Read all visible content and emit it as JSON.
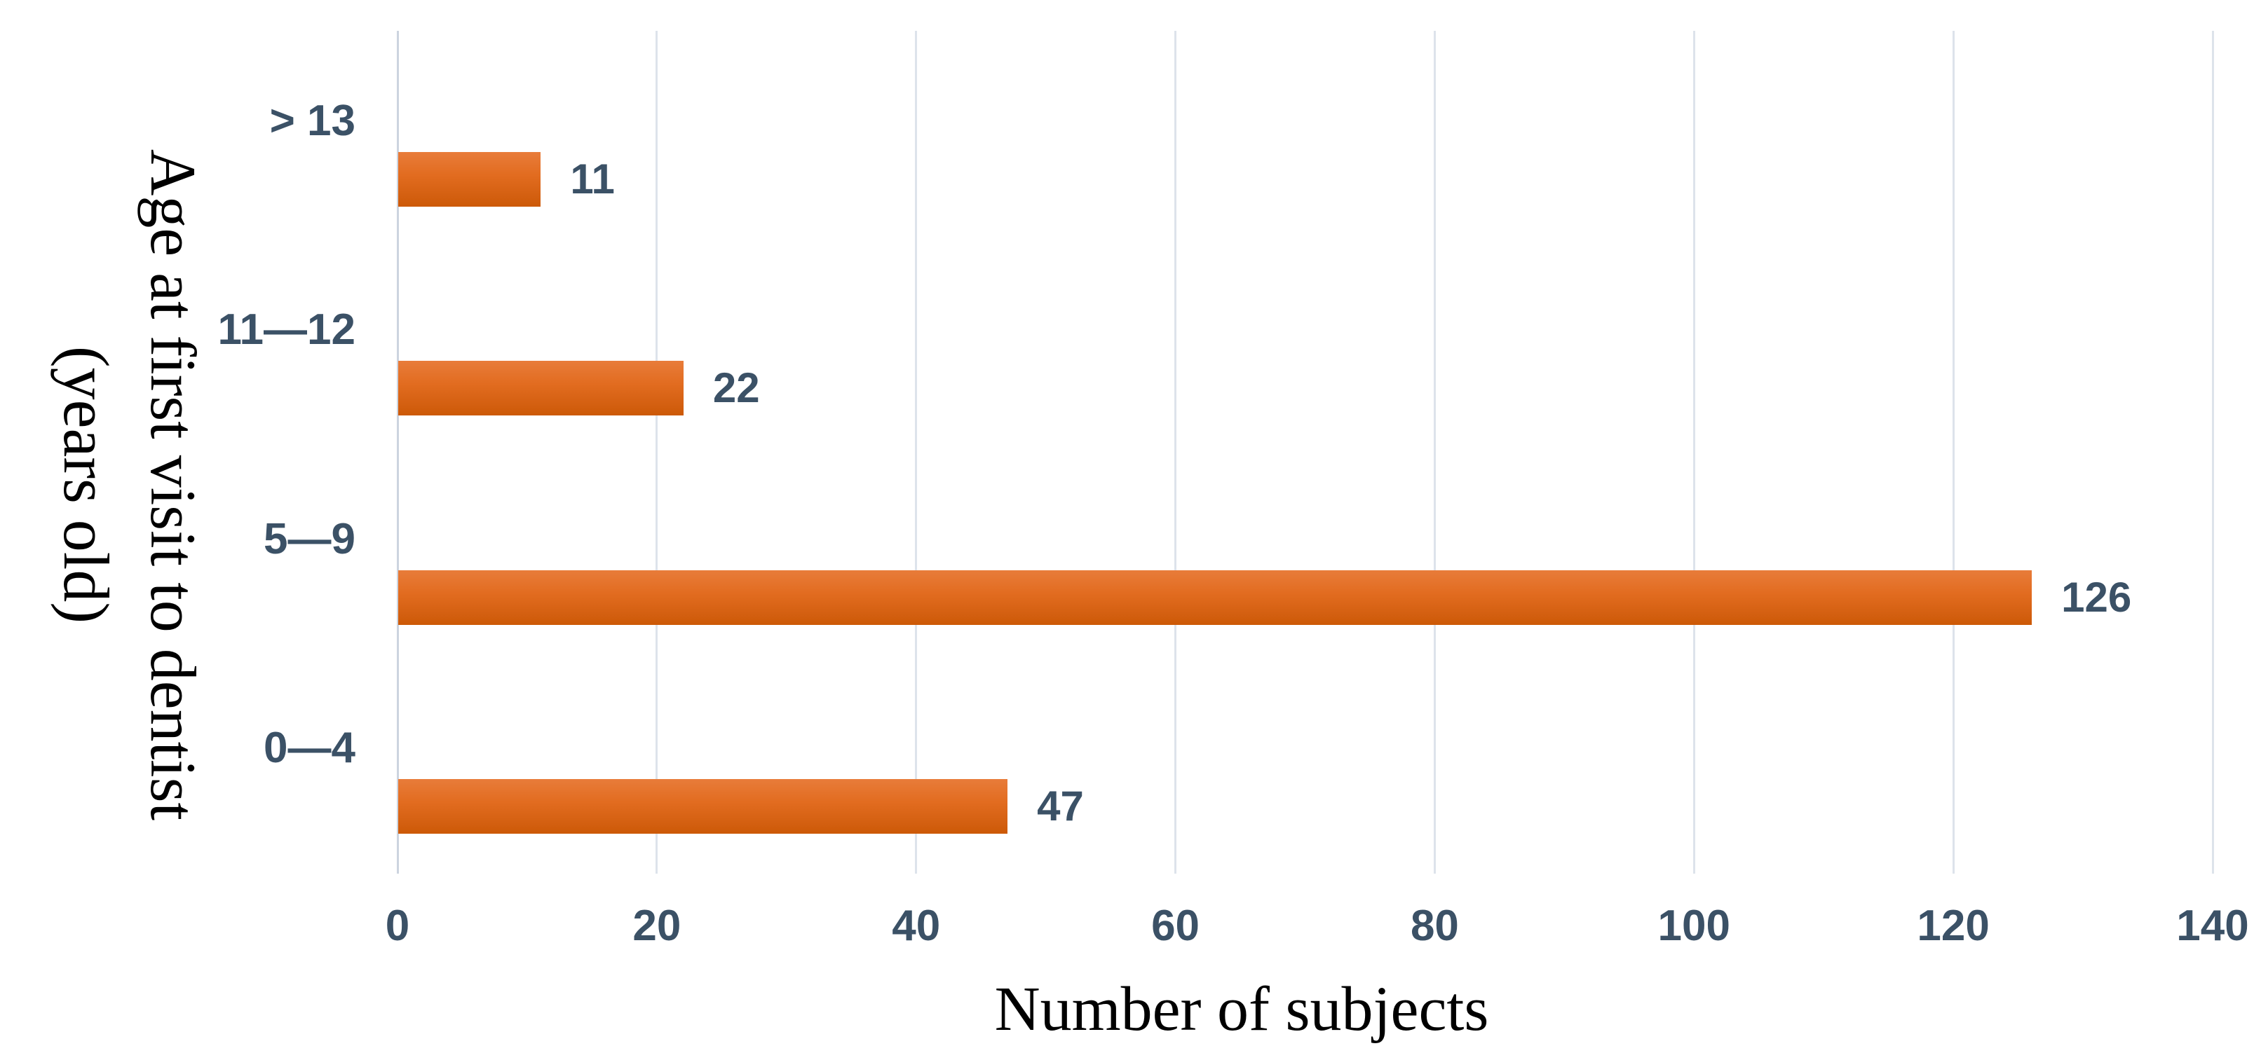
{
  "chart_data": {
    "type": "bar",
    "orientation": "horizontal",
    "title": "",
    "categories": [
      "> 13",
      "11—12",
      "5—9",
      "0—4"
    ],
    "values": [
      11,
      22,
      126,
      47
    ],
    "data_labels": [
      "11",
      "22",
      "126",
      "47"
    ],
    "xlabel": "Number of subjects",
    "ylabel": "Age at first visit to dentist (years old)",
    "ylabel_line1": "Age at first visit to dentist",
    "ylabel_line2": "(years old)",
    "xlim": [
      0,
      140
    ],
    "xticks": [
      0,
      20,
      40,
      60,
      80,
      100,
      120,
      140
    ],
    "grid": "vertical-gridlines-on",
    "legend": "none",
    "colors": {
      "bar_gradient_top": "#e87c3a",
      "bar_gradient_bottom": "#cc5906",
      "axis_text": "#3b5166",
      "gridline": "#dde3eb",
      "title_text": "#000000",
      "background": "#ffffff"
    }
  }
}
